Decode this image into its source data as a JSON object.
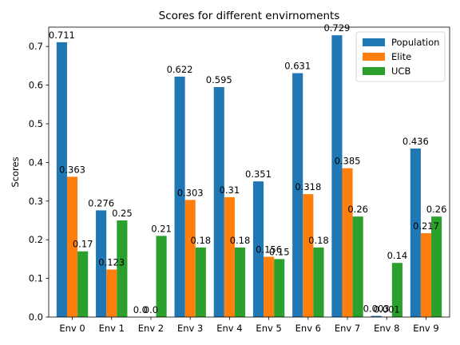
{
  "chart_data": {
    "type": "bar",
    "title": "Scores for different envirnoments",
    "xlabel": "",
    "ylabel": "Scores",
    "ylim": [
      0,
      0.75
    ],
    "yticks": [
      "0.0",
      "0.1",
      "0.2",
      "0.3",
      "0.4",
      "0.5",
      "0.6",
      "0.7"
    ],
    "ytick_values": [
      0,
      0.1,
      0.2,
      0.3,
      0.4,
      0.5,
      0.6,
      0.7
    ],
    "categories": [
      "Env 0",
      "Env 1",
      "Env 2",
      "Env 3",
      "Env 4",
      "Env 5",
      "Env 6",
      "Env 7",
      "Env 8",
      "Env 9"
    ],
    "grid": false,
    "legend_position": "top-right",
    "series": [
      {
        "name": "Population",
        "color": "#1f77b4",
        "values": [
          0.711,
          0.276,
          0.0,
          0.622,
          0.595,
          0.351,
          0.631,
          0.729,
          0.003,
          0.436
        ],
        "labels": [
          "0.711",
          "0.276",
          "0.0",
          "0.622",
          "0.595",
          "0.351",
          "0.631",
          "0.729",
          "0.003",
          "0.436"
        ]
      },
      {
        "name": "Elite",
        "color": "#ff7f0e",
        "values": [
          0.363,
          0.123,
          0.0,
          0.303,
          0.31,
          0.156,
          0.318,
          0.385,
          0.001,
          0.217
        ],
        "labels": [
          "0.363",
          "0.123",
          "0.0",
          "0.303",
          "0.31",
          "0.156",
          "0.318",
          "0.385",
          "0.001",
          "0.217"
        ]
      },
      {
        "name": "UCB",
        "color": "#2ca02c",
        "values": [
          0.17,
          0.25,
          0.21,
          0.18,
          0.18,
          0.15,
          0.18,
          0.26,
          0.14,
          0.26
        ],
        "labels": [
          "0.17",
          "0.25",
          "0.21",
          "0.18",
          "0.18",
          "0.15",
          "0.18",
          "0.26",
          "0.14",
          "0.26"
        ]
      }
    ]
  }
}
